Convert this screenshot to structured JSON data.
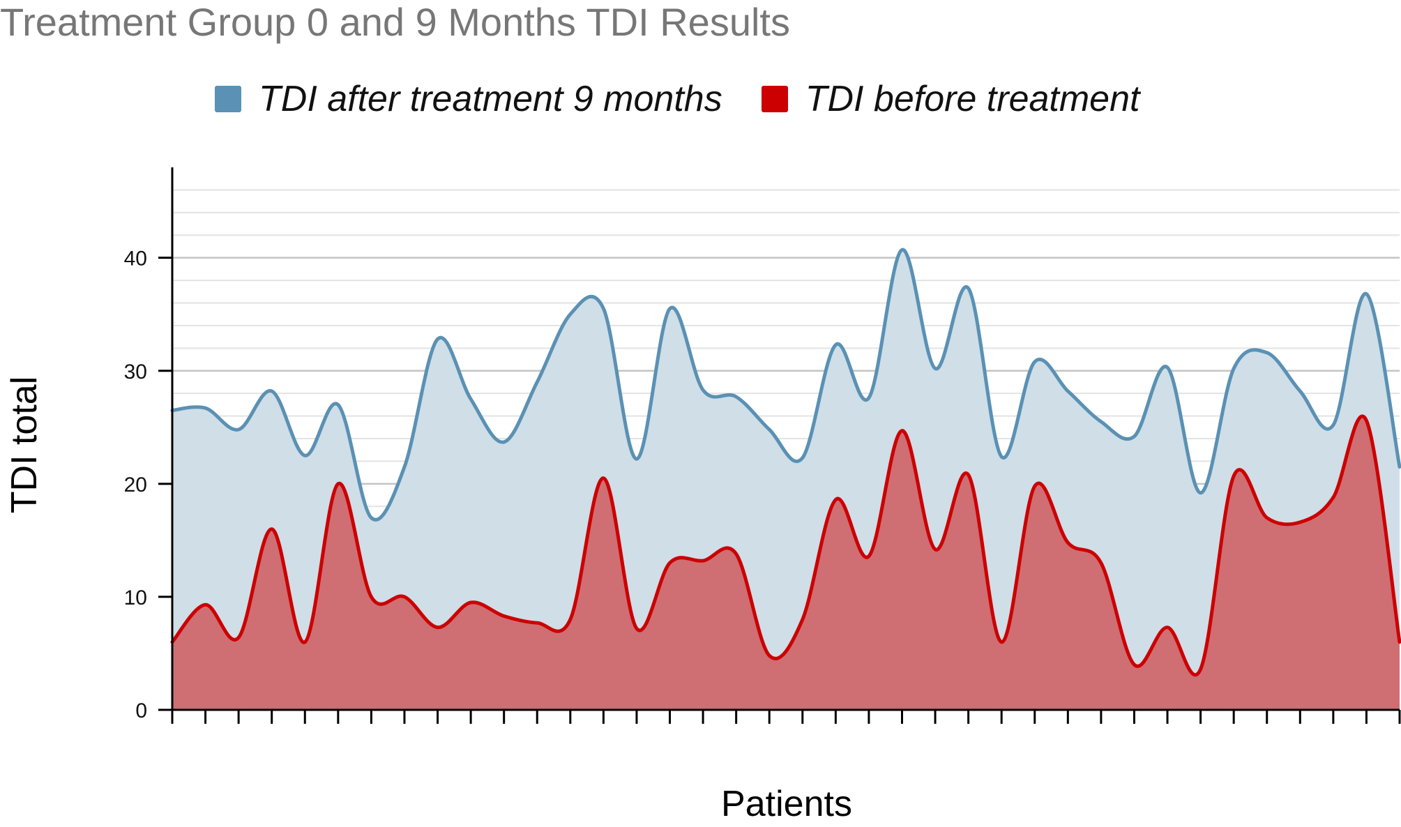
{
  "chart_data": {
    "type": "area",
    "title": "Treatment Group 0 and 9 Months TDI Results",
    "xlabel": "Patients",
    "ylabel": "TDI total",
    "ylim": [
      0,
      48
    ],
    "yticks": [
      0,
      10,
      20,
      30,
      40
    ],
    "grid": true,
    "legend_position": "top",
    "x": [
      1,
      2,
      3,
      4,
      5,
      6,
      7,
      8,
      9,
      10,
      11,
      12,
      13,
      14,
      15,
      16,
      17,
      18,
      19,
      20,
      21,
      22,
      23,
      24,
      25,
      26,
      27,
      28,
      29,
      30,
      31,
      32,
      33,
      34,
      35,
      36,
      37,
      38
    ],
    "series": [
      {
        "name": "TDI after treatment 9 months",
        "color": "#5a91b4",
        "fill": "#cfdee7",
        "values": [
          26.5,
          26.7,
          24.8,
          28.2,
          22.5,
          27.0,
          17.0,
          21.5,
          32.8,
          27.5,
          23.7,
          29.0,
          35.0,
          35.5,
          22.2,
          35.5,
          28.3,
          27.7,
          24.8,
          22.3,
          32.3,
          27.6,
          40.7,
          30.2,
          37.3,
          22.4,
          30.8,
          28.2,
          25.5,
          24.2,
          30.3,
          19.2,
          30.2,
          31.6,
          28.2,
          25.2,
          36.8,
          21.5
        ]
      },
      {
        "name": "TDI before treatment",
        "color": "#cc0000",
        "fill": "#cf6b70",
        "values": [
          6.0,
          9.3,
          6.4,
          16.0,
          6.0,
          20.0,
          10.0,
          10.0,
          7.3,
          9.5,
          8.3,
          7.7,
          8.0,
          20.5,
          7.2,
          13.0,
          13.2,
          13.8,
          4.8,
          8.0,
          18.6,
          13.6,
          24.7,
          14.2,
          20.8,
          6.0,
          19.8,
          14.8,
          13.0,
          4.0,
          7.3,
          3.6,
          20.7,
          17.0,
          16.6,
          18.8,
          25.6,
          6.0
        ]
      }
    ]
  }
}
